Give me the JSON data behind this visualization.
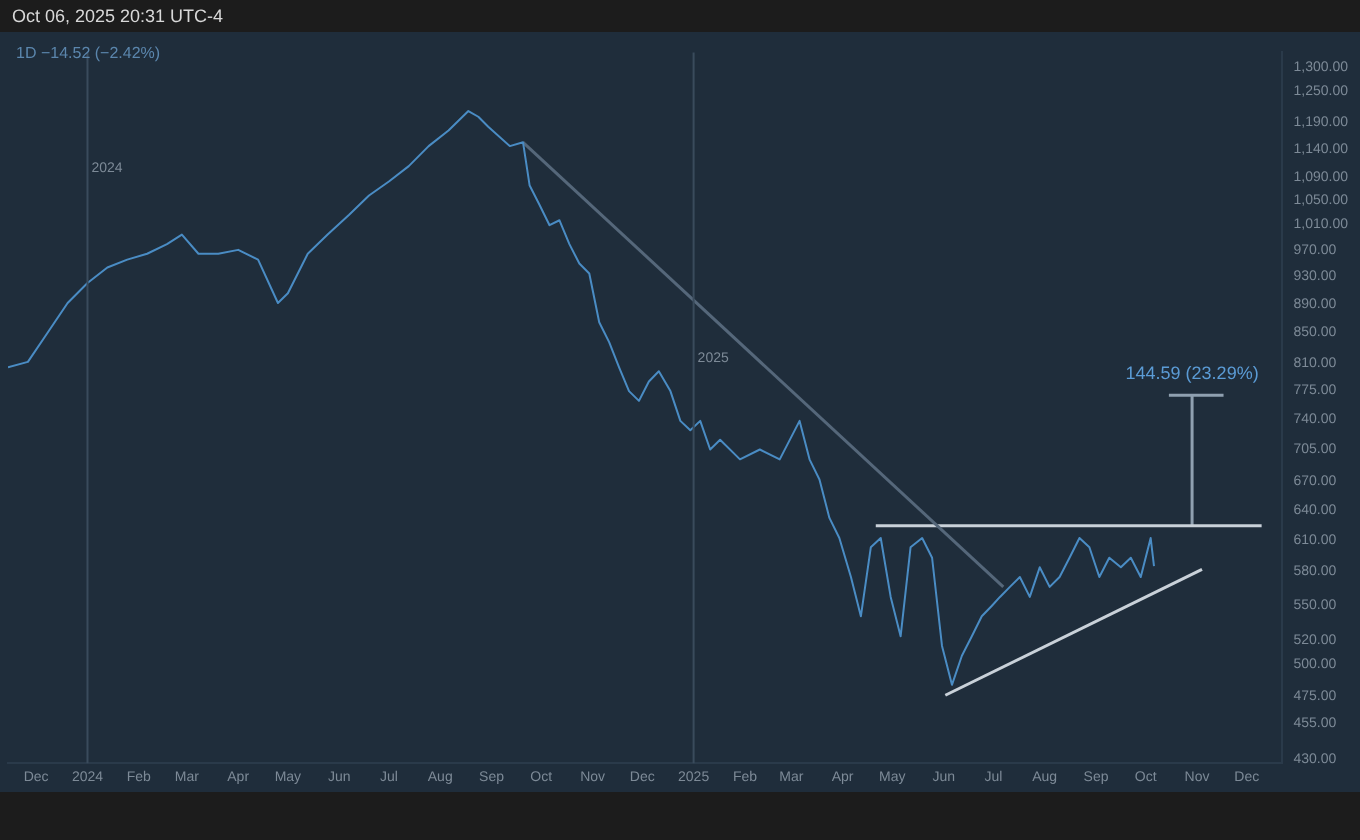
{
  "chart_data": {
    "type": "line",
    "title": "Oct 06, 2025 20:31 UTC-4",
    "subtitle": "1D  −14.52 (−2.42%)",
    "marker": "none",
    "log": true,
    "grid": false,
    "xlim": [
      "2023-11-14",
      "2025-12-22"
    ],
    "xticks": [
      {
        "value": "2023-12-01",
        "label": "Dec"
      },
      {
        "value": "2024-01-01",
        "label": "2024"
      },
      {
        "value": "2024-02-01",
        "label": "Feb"
      },
      {
        "value": "2024-03-01",
        "label": "Mar"
      },
      {
        "value": "2024-04-01",
        "label": "Apr"
      },
      {
        "value": "2024-05-01",
        "label": "May"
      },
      {
        "value": "2024-06-01",
        "label": "Jun"
      },
      {
        "value": "2024-07-01",
        "label": "Jul"
      },
      {
        "value": "2024-08-01",
        "label": "Aug"
      },
      {
        "value": "2024-09-01",
        "label": "Sep"
      },
      {
        "value": "2024-10-01",
        "label": "Oct"
      },
      {
        "value": "2024-11-01",
        "label": "Nov"
      },
      {
        "value": "2024-12-01",
        "label": "Dec"
      },
      {
        "value": "2025-01-01",
        "label": "2025"
      },
      {
        "value": "2025-02-01",
        "label": "Feb"
      },
      {
        "value": "2025-03-01",
        "label": "Mar"
      },
      {
        "value": "2025-04-01",
        "label": "Apr"
      },
      {
        "value": "2025-05-01",
        "label": "May"
      },
      {
        "value": "2025-06-01",
        "label": "Jun"
      },
      {
        "value": "2025-07-01",
        "label": "Jul"
      },
      {
        "value": "2025-08-01",
        "label": "Aug"
      },
      {
        "value": "2025-09-01",
        "label": "Sep"
      },
      {
        "value": "2025-10-01",
        "label": "Oct"
      },
      {
        "value": "2025-11-01",
        "label": "Nov"
      },
      {
        "value": "2025-12-01",
        "label": "Dec"
      }
    ],
    "ylim": [
      427,
      1330
    ],
    "yticks": [
      {
        "value": 1300,
        "label": "1,300.00"
      },
      {
        "value": 1250,
        "label": "1,250.00"
      },
      {
        "value": 1190,
        "label": "1,190.00"
      },
      {
        "value": 1140,
        "label": "1,140.00"
      },
      {
        "value": 1090,
        "label": "1,090.00"
      },
      {
        "value": 1050,
        "label": "1,050.00"
      },
      {
        "value": 1010,
        "label": "1,010.00"
      },
      {
        "value": 970,
        "label": "970.00"
      },
      {
        "value": 930,
        "label": "930.00"
      },
      {
        "value": 890,
        "label": "890.00"
      },
      {
        "value": 850,
        "label": "850.00"
      },
      {
        "value": 810,
        "label": "810.00"
      },
      {
        "value": 775,
        "label": "775.00"
      },
      {
        "value": 740,
        "label": "740.00"
      },
      {
        "value": 705,
        "label": "705.00"
      },
      {
        "value": 670,
        "label": "670.00"
      },
      {
        "value": 640,
        "label": "640.00"
      },
      {
        "value": 610,
        "label": "610.00"
      },
      {
        "value": 580,
        "label": "580.00"
      },
      {
        "value": 550,
        "label": "550.00"
      },
      {
        "value": 520,
        "label": "520.00"
      },
      {
        "value": 500,
        "label": "500.00"
      },
      {
        "value": 475,
        "label": "475.00"
      },
      {
        "value": 455,
        "label": "455.00"
      },
      {
        "value": 430,
        "label": "430.00"
      }
    ],
    "ref_lines": [
      {
        "axis": "x",
        "value": "2024-01-01",
        "label": "2024",
        "color": "#3a4b5c"
      },
      {
        "axis": "x",
        "value": "2025-01-01",
        "label": "2025",
        "color": "#3a4b5c"
      }
    ],
    "annotations": [
      {
        "text": "144.59 (23.29%)",
        "x": "2025-10-29",
        "y": 769
      }
    ],
    "series": [
      {
        "color": "#4a8cc4",
        "x": [
          "2023-11-14",
          "2023-11-26",
          "2023-12-08",
          "2023-12-20",
          "2024-01-01",
          "2024-01-13",
          "2024-01-25",
          "2024-02-06",
          "2024-02-18",
          "2024-02-27",
          "2024-03-08",
          "2024-03-20",
          "2024-04-01",
          "2024-04-13",
          "2024-04-25",
          "2024-05-01",
          "2024-05-13",
          "2024-05-25",
          "2024-06-07",
          "2024-06-19",
          "2024-07-01",
          "2024-07-13",
          "2024-07-25",
          "2024-08-06",
          "2024-08-18",
          "2024-08-24",
          "2024-08-30",
          "2024-09-12",
          "2024-09-20",
          "2024-09-24",
          "2024-09-30",
          "2024-10-06",
          "2024-10-12",
          "2024-10-18",
          "2024-10-24",
          "2024-10-30",
          "2024-11-05",
          "2024-11-11",
          "2024-11-17",
          "2024-11-23",
          "2024-11-29",
          "2024-12-05",
          "2024-12-11",
          "2024-12-18",
          "2024-12-24",
          "2024-12-30",
          "2025-01-05",
          "2025-01-11",
          "2025-01-17",
          "2025-01-29",
          "2025-02-10",
          "2025-02-22",
          "2025-03-06",
          "2025-03-12",
          "2025-03-18",
          "2025-03-24",
          "2025-03-30",
          "2025-04-06",
          "2025-04-12",
          "2025-04-18",
          "2025-04-24",
          "2025-04-30",
          "2025-05-06",
          "2025-05-12",
          "2025-05-19",
          "2025-05-25",
          "2025-05-31",
          "2025-06-06",
          "2025-06-12",
          "2025-06-18",
          "2025-06-24",
          "2025-06-30",
          "2025-07-05",
          "2025-07-11",
          "2025-07-17",
          "2025-07-23",
          "2025-07-29",
          "2025-08-04",
          "2025-08-10",
          "2025-08-16",
          "2025-08-22",
          "2025-08-28",
          "2025-09-03",
          "2025-09-09",
          "2025-09-16",
          "2025-09-22",
          "2025-09-28",
          "2025-10-04",
          "2025-10-06"
        ],
        "values": [
          804,
          811,
          850,
          891,
          920,
          943,
          955,
          964,
          979,
          994,
          964,
          964,
          970,
          955,
          891,
          905,
          964,
          994,
          1026,
          1058,
          1082,
          1109,
          1145,
          1174,
          1211,
          1200,
          1181,
          1145,
          1152,
          1075,
          1042,
          1009,
          1017,
          979,
          949,
          934,
          864,
          837,
          804,
          774,
          762,
          786,
          799,
          774,
          738,
          727,
          738,
          705,
          716,
          694,
          705,
          694,
          738,
          694,
          672,
          632,
          612,
          575,
          540,
          603,
          612,
          557,
          523,
          603,
          612,
          593,
          515,
          484,
          507,
          523,
          540,
          549,
          557,
          566,
          575,
          557,
          584,
          566,
          575,
          593,
          612,
          603,
          575,
          593,
          584,
          593,
          575,
          612,
          585
        ]
      },
      {
        "color": "#55677a",
        "x": [
          "2024-09-20",
          "2025-07-07"
        ],
        "values": [
          1152,
          566
        ]
      },
      {
        "color": "#c9d1d9",
        "x": [
          "2025-04-21",
          "2025-12-10"
        ],
        "values": [
          624,
          624
        ]
      },
      {
        "color": "#c9d1d9",
        "x": [
          "2025-06-02",
          "2025-11-04"
        ],
        "values": [
          476,
          582
        ]
      },
      {
        "color": "#8fa0b0",
        "x": [
          "2025-10-29",
          "2025-10-29"
        ],
        "values": [
          624,
          769
        ]
      },
      {
        "color": "#8fa0b0",
        "x": [
          "2025-10-15",
          "2025-11-17"
        ],
        "values": [
          769,
          769
        ]
      }
    ]
  }
}
